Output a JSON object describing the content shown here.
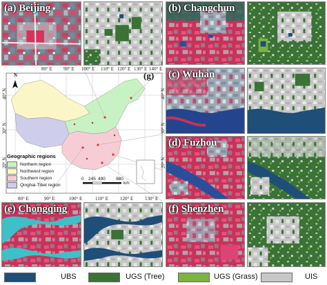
{
  "panels": {
    "a": "(a) Beijing",
    "b": "(b) Changchun",
    "c": "(c) Wuhan",
    "d": "(d) Fuzhou",
    "e": "(e) Chongqing",
    "f": "(f) Shenzhen",
    "g": "(g)"
  },
  "axis": {
    "lon_top": [
      "80° E",
      "90° E",
      "100° E",
      "110° E",
      "120° E",
      "130° E",
      "140° E"
    ],
    "lon_bottom": [
      "80° E",
      "90° E",
      "100° E",
      "110° E",
      "120° E",
      "130° E"
    ],
    "lat_left": [
      "40° N",
      "30° N",
      "20° N"
    ],
    "lat_right": [
      "40° N",
      "30° N",
      "20° N"
    ]
  },
  "map": {
    "north_arrow": "N",
    "scale_values": [
      "0",
      "245",
      "490",
      "980"
    ],
    "scale_unit": "km",
    "legend_title": "Geographic regions",
    "regions": [
      {
        "name": "Northern region",
        "color": "#c9f2c4"
      },
      {
        "name": "Northwest region",
        "color": "#fbf6c8"
      },
      {
        "name": "Southern region",
        "color": "#f6cdd5"
      },
      {
        "name": "Qinghai-Tibet region",
        "color": "#cfcdec"
      }
    ]
  },
  "legend": [
    {
      "label": "UBS",
      "color": "#1f4e79"
    },
    {
      "label": "UGS (Tree)",
      "color": "#3a7335"
    },
    {
      "label": "UGS (Grass)",
      "color": "#7cb342"
    },
    {
      "label": "UIS",
      "color": "#c8c8c8"
    }
  ]
}
